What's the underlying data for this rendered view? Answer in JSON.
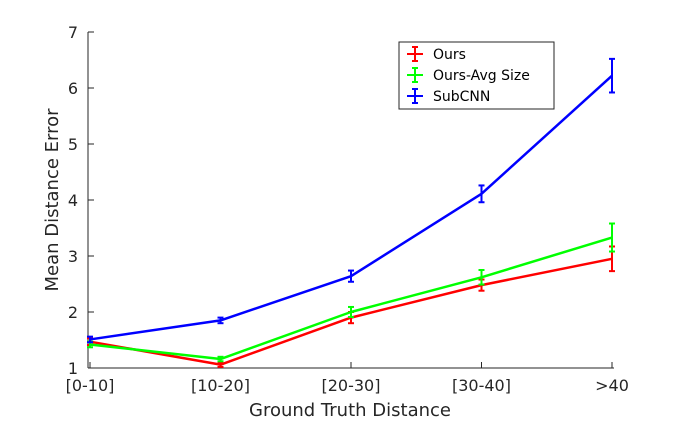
{
  "chart_data": {
    "type": "line",
    "title": "",
    "xlabel": "Ground Truth Distance",
    "ylabel": "Mean Distance Error",
    "categories": [
      "[0-10]",
      "[10-20]",
      "[20-30]",
      "[30-40]",
      ">40"
    ],
    "ylim": [
      1,
      7
    ],
    "yticks": [
      1,
      2,
      3,
      4,
      5,
      6,
      7
    ],
    "grid": false,
    "legend": "top-right",
    "series": [
      {
        "name": "Ours",
        "color": "#ff0000",
        "values": [
          1.47,
          1.06,
          1.9,
          2.48,
          2.95
        ],
        "errors": [
          0.06,
          0.04,
          0.1,
          0.1,
          0.22
        ]
      },
      {
        "name": "Ours-Avg Size",
        "color": "#00ff00",
        "values": [
          1.42,
          1.16,
          2.0,
          2.62,
          3.33
        ],
        "errors": [
          0.05,
          0.04,
          0.09,
          0.13,
          0.25
        ]
      },
      {
        "name": "SubCNN",
        "color": "#0000ff",
        "values": [
          1.51,
          1.85,
          2.64,
          4.11,
          6.22
        ],
        "errors": [
          0.05,
          0.05,
          0.1,
          0.15,
          0.3
        ]
      }
    ]
  }
}
